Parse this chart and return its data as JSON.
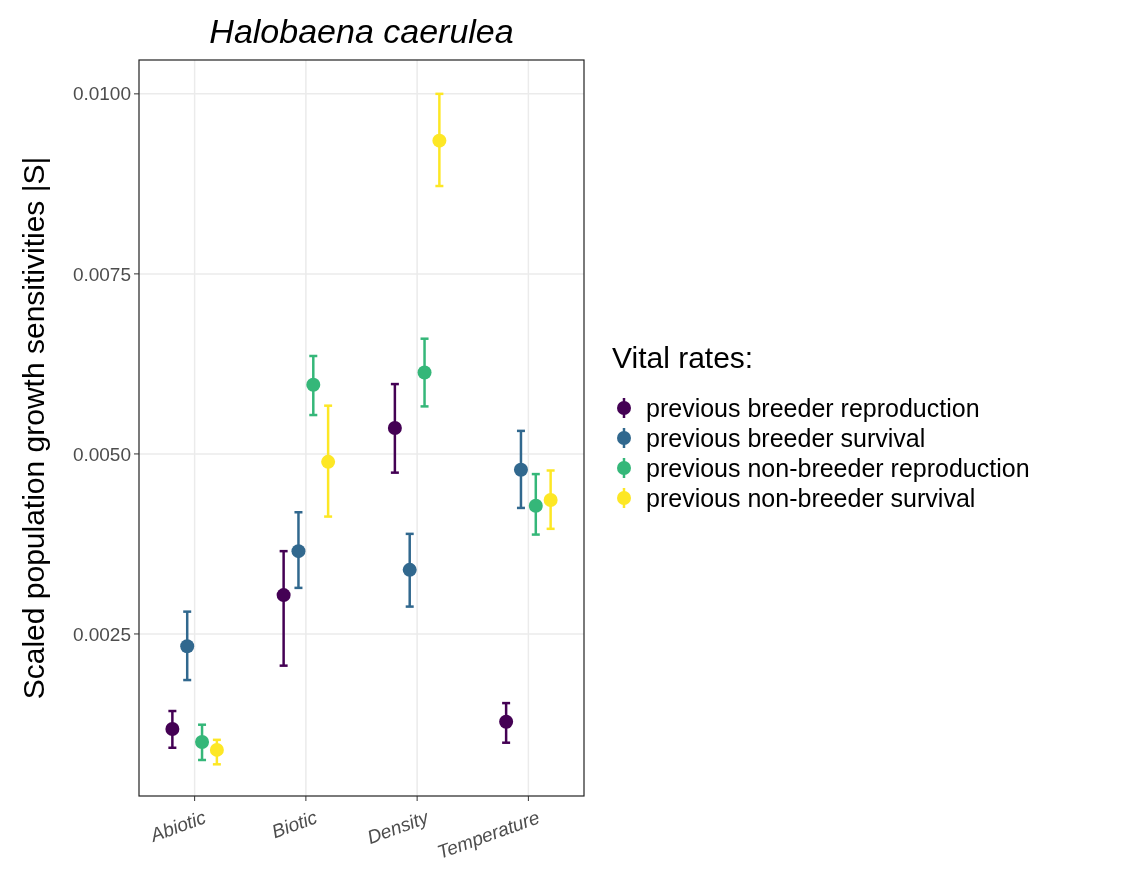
{
  "chart_data": {
    "type": "scatter",
    "title": "Halobaena caerulea",
    "ylabel": "Scaled population growth sensitivities |S|",
    "legend_title": "Vital rates:",
    "categories": [
      "Abiotic",
      "Biotic",
      "Density",
      "Temperature"
    ],
    "series": [
      {
        "name": "previous breeder reproduction",
        "color": "#440154",
        "values": [
          0.00118,
          0.00304,
          0.00536,
          0.00128
        ],
        "errors": [
          [
            0.00092,
            0.00143
          ],
          [
            0.00206,
            0.00365
          ],
          [
            0.00474,
            0.00597
          ],
          [
            0.00099,
            0.00154
          ]
        ]
      },
      {
        "name": "previous breeder survival",
        "color": "#31688e",
        "values": [
          0.00233,
          0.00365,
          0.00339,
          0.00478
        ],
        "errors": [
          [
            0.00186,
            0.00281
          ],
          [
            0.00314,
            0.00419
          ],
          [
            0.00288,
            0.00389
          ],
          [
            0.00425,
            0.00532
          ]
        ]
      },
      {
        "name": "previous non-breeder reproduction",
        "color": "#35b779",
        "values": [
          0.001,
          0.00596,
          0.00613,
          0.00428
        ],
        "errors": [
          [
            0.00075,
            0.00124
          ],
          [
            0.00554,
            0.00636
          ],
          [
            0.00566,
            0.0066
          ],
          [
            0.00388,
            0.00472
          ]
        ]
      },
      {
        "name": "previous non-breeder survival",
        "color": "#fde725",
        "values": [
          0.00089,
          0.00489,
          0.00935,
          0.00436
        ],
        "errors": [
          [
            0.00069,
            0.00103
          ],
          [
            0.00413,
            0.00567
          ],
          [
            0.00872,
            0.01
          ],
          [
            0.00396,
            0.00477
          ]
        ]
      }
    ],
    "ylim": [
      0.00025,
      0.01047
    ],
    "yticks": [
      {
        "value": 0.0025,
        "label": "0.0025"
      },
      {
        "value": 0.005,
        "label": "0.0050"
      },
      {
        "value": 0.0075,
        "label": "0.0075"
      },
      {
        "value": 0.01,
        "label": "0.0100"
      }
    ],
    "grid": true,
    "legend": "right",
    "marker": "circle"
  }
}
